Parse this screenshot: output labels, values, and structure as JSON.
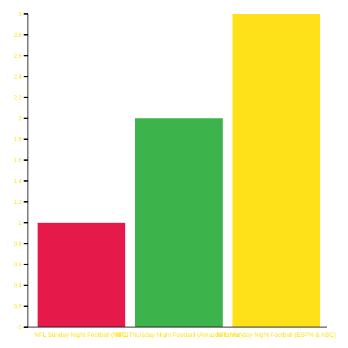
{
  "chart_data": {
    "type": "bar",
    "categories": [
      "NFL Sunday Night Football (NBC)",
      "NFL Thursday Night Football (Amazon Prime)",
      "NFL Monday Night Football (ESPN & ABC)"
    ],
    "values": [
      1,
      2,
      3
    ],
    "bar_colors": [
      "#e6194b",
      "#3cb44b",
      "#ffe119"
    ],
    "label_color": "#ffe119",
    "axis_color": "#000000",
    "title": "",
    "xlabel": "",
    "ylabel": "",
    "ylim": [
      0,
      3
    ],
    "yticks": [
      "0",
      "0.2",
      "0.4",
      "0.6",
      "0.8",
      "1",
      "1.2",
      "1.4",
      "1.6",
      "1.8",
      "2",
      "2.2",
      "2.4",
      "2.6",
      "2.8",
      "3"
    ],
    "grid": false,
    "legend": "none"
  }
}
